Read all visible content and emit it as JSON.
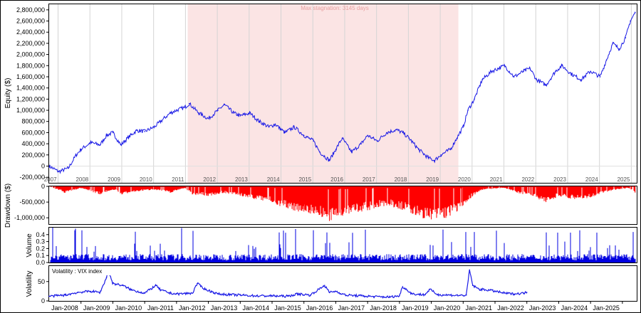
{
  "chart_data": [
    {
      "type": "line",
      "panel": "equity",
      "ylabel": "Equity ($)",
      "ylim": [
        -300000,
        2900000
      ],
      "yticks": [
        -200000,
        0,
        200000,
        400000,
        600000,
        800000,
        1000000,
        1200000,
        1400000,
        1600000,
        1800000,
        2000000,
        2200000,
        2400000,
        2600000,
        2800000
      ],
      "ytick_labels": [
        "-200,000",
        "0",
        "200,000",
        "400,000",
        "600,000",
        "800,000",
        "1,000,000",
        "1,200,000",
        "1,400,000",
        "1,600,000",
        "1,800,000",
        "2,000,000",
        "2,200,000",
        "2,400,000",
        "2,600,000",
        "2,800,000"
      ],
      "year_labels": [
        "2007",
        "2008",
        "2009",
        "2010",
        "2011",
        "2012",
        "2013",
        "2014",
        "2015",
        "2016",
        "2017",
        "2018",
        "2019",
        "2020",
        "2021",
        "2022",
        "2023",
        "2024",
        "2025"
      ],
      "stagnation": {
        "start": 2011.35,
        "end": 2019.85,
        "label": "Max stagnation: 3145 days"
      },
      "grid": true,
      "color": "#1a1ae6",
      "x": [
        2007.0,
        2007.3,
        2007.6,
        2007.85,
        2008.0,
        2008.3,
        2008.6,
        2008.8,
        2009.0,
        2009.25,
        2009.5,
        2009.75,
        2010.0,
        2010.3,
        2010.5,
        2010.8,
        2011.0,
        2011.25,
        2011.4,
        2011.7,
        2012.0,
        2012.3,
        2012.5,
        2012.8,
        2013.0,
        2013.3,
        2013.6,
        2013.9,
        2014.1,
        2014.4,
        2014.7,
        2015.0,
        2015.3,
        2015.5,
        2015.8,
        2016.0,
        2016.2,
        2016.5,
        2016.8,
        2017.0,
        2017.3,
        2017.6,
        2017.9,
        2018.1,
        2018.3,
        2018.6,
        2018.9,
        2019.1,
        2019.3,
        2019.6,
        2019.8,
        2020.0,
        2020.15,
        2020.35,
        2020.6,
        2020.9,
        2021.1,
        2021.3,
        2021.6,
        2021.9,
        2022.1,
        2022.3,
        2022.6,
        2022.9,
        2023.1,
        2023.4,
        2023.7,
        2024.0,
        2024.3,
        2024.5,
        2024.7,
        2024.9,
        2025.1,
        2025.25,
        2025.4
      ],
      "y": [
        0,
        -100000,
        -40000,
        200000,
        300000,
        420000,
        380000,
        550000,
        600000,
        380000,
        520000,
        640000,
        620000,
        700000,
        800000,
        950000,
        1000000,
        1050000,
        1120000,
        950000,
        850000,
        1000000,
        1100000,
        950000,
        900000,
        950000,
        800000,
        700000,
        750000,
        600000,
        700000,
        550000,
        450000,
        250000,
        100000,
        300000,
        500000,
        250000,
        400000,
        550000,
        450000,
        600000,
        650000,
        600000,
        500000,
        300000,
        150000,
        100000,
        200000,
        300000,
        500000,
        700000,
        1000000,
        1200000,
        1550000,
        1700000,
        1750000,
        1800000,
        1600000,
        1700000,
        1750000,
        1550000,
        1450000,
        1700000,
        1800000,
        1650000,
        1550000,
        1700000,
        1600000,
        1900000,
        2200000,
        2100000,
        2300000,
        2600000,
        2750000
      ]
    },
    {
      "type": "area",
      "panel": "drawdown",
      "ylabel": "Drawdown ($)",
      "ylim": [
        -1200000,
        0
      ],
      "yticks": [
        0,
        -500000,
        -1000000
      ],
      "ytick_labels": [
        "0",
        "-500,000",
        "-1,000,000"
      ],
      "color": "#ff0000",
      "x": [
        2007.0,
        2007.5,
        2007.85,
        2008.0,
        2008.6,
        2009.0,
        2009.3,
        2009.8,
        2010.3,
        2010.8,
        2011.25,
        2011.5,
        2012.0,
        2012.5,
        2013.0,
        2013.5,
        2014.0,
        2014.5,
        2015.0,
        2015.5,
        2015.8,
        2016.2,
        2016.7,
        2017.2,
        2017.6,
        2018.0,
        2018.5,
        2019.0,
        2019.4,
        2019.8,
        2020.0,
        2020.3,
        2020.6,
        2021.3,
        2021.7,
        2022.2,
        2022.6,
        2023.0,
        2023.5,
        2024.0,
        2024.4,
        2024.8,
        2025.2,
        2025.4
      ],
      "y": [
        0,
        -200000,
        -100000,
        -50000,
        -250000,
        -100000,
        -250000,
        -150000,
        -100000,
        -200000,
        -50000,
        -250000,
        -300000,
        -200000,
        -300000,
        -400000,
        -500000,
        -700000,
        -800000,
        -900000,
        -1100000,
        -900000,
        -800000,
        -700000,
        -600000,
        -700000,
        -900000,
        -1050000,
        -1000000,
        -800000,
        -600000,
        -300000,
        -100000,
        -50000,
        -200000,
        -300000,
        -500000,
        -300000,
        -400000,
        -350000,
        -200000,
        -100000,
        -50000,
        -200000
      ]
    },
    {
      "type": "bar",
      "panel": "volume",
      "ylabel": "Volume",
      "ylim": [
        0,
        0.5
      ],
      "yticks": [
        0,
        0.1,
        0.2,
        0.3,
        0.4
      ],
      "ytick_labels": [
        "0.0",
        "0.1",
        "0.2",
        "0.3",
        "0.4"
      ],
      "color": "#0000e0",
      "baseline_level": 0.1,
      "typical_max": 0.3,
      "spike_max": 0.5
    },
    {
      "type": "line",
      "panel": "volatility",
      "ylabel": "Volatility",
      "ylim": [
        0,
        90
      ],
      "yticks": [
        0,
        50
      ],
      "ytick_labels": [
        "0",
        "50"
      ],
      "legend": "Volatility : VIX index",
      "color": "#1a1ae6",
      "x": [
        2007.0,
        2007.5,
        2007.9,
        2008.3,
        2008.6,
        2008.8,
        2008.85,
        2009.0,
        2009.3,
        2009.6,
        2010.0,
        2010.35,
        2010.5,
        2010.8,
        2011.0,
        2011.5,
        2011.65,
        2011.9,
        2012.3,
        2012.7,
        2013.0,
        2013.5,
        2014.0,
        2014.5,
        2014.8,
        2015.2,
        2015.65,
        2015.8,
        2016.0,
        2016.3,
        2016.8,
        2017.2,
        2017.7,
        2018.0,
        2018.1,
        2018.4,
        2018.8,
        2018.95,
        2019.2,
        2019.6,
        2019.9,
        2020.1,
        2020.2,
        2020.3,
        2020.5,
        2020.8,
        2021.0,
        2021.3,
        2021.6,
        2021.9,
        2022.0
      ],
      "y": [
        12,
        15,
        22,
        25,
        22,
        60,
        80,
        45,
        40,
        28,
        20,
        40,
        28,
        20,
        18,
        20,
        45,
        30,
        18,
        16,
        15,
        13,
        13,
        12,
        18,
        15,
        40,
        22,
        25,
        15,
        13,
        11,
        10,
        13,
        37,
        18,
        16,
        30,
        16,
        15,
        14,
        15,
        80,
        40,
        30,
        28,
        25,
        20,
        18,
        20,
        22
      ]
    }
  ],
  "x_axis": {
    "labels": [
      "Jan-2008",
      "Jan-2009",
      "Jan-2010",
      "Jan-2011",
      "Jan-2012",
      "Jan-2013",
      "Jan-2014",
      "Jan-2015",
      "Jan-2016",
      "Jan-2017",
      "Jan-2018",
      "Jan-2019",
      "Jan-2020",
      "Jan-2021",
      "Jan-2022",
      "Jan-2023",
      "Jan-2024",
      "Jan-2025"
    ],
    "values": [
      2008,
      2009,
      2010,
      2011,
      2012,
      2013,
      2014,
      2015,
      2016,
      2017,
      2018,
      2019,
      2020,
      2021,
      2022,
      2023,
      2024,
      2025
    ],
    "xlim": [
      2007.0,
      2025.45
    ]
  }
}
